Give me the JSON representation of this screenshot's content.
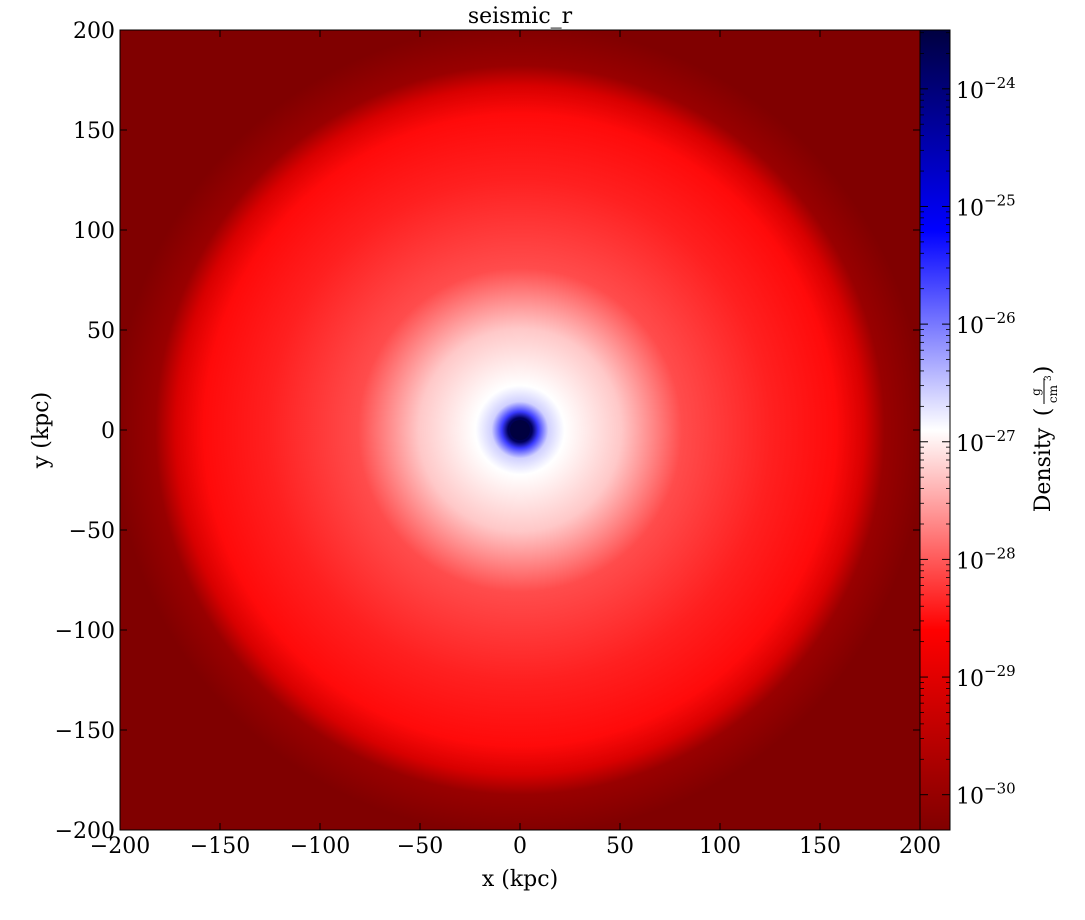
{
  "chart_data": {
    "type": "heatmap",
    "title": "seismic_r",
    "xlabel": "x  (kpc)",
    "ylabel": "y  (kpc)",
    "xlim": [
      -200,
      200
    ],
    "ylim": [
      -200,
      200
    ],
    "x_ticks": [
      -200,
      -150,
      -100,
      -50,
      0,
      50,
      100,
      150,
      200
    ],
    "y_ticks": [
      -200,
      -150,
      -100,
      -50,
      0,
      50,
      100,
      150,
      200
    ],
    "x_tick_labels": [
      "−200",
      "−150",
      "−100",
      "−50",
      "0",
      "50",
      "100",
      "150",
      "200"
    ],
    "y_tick_labels": [
      "−200",
      "−150",
      "−100",
      "−50",
      "0",
      "50",
      "100",
      "150",
      "200"
    ],
    "colormap": "seismic_r",
    "colorbar": {
      "label": "Density",
      "unit_numerator": "g",
      "unit_denominator": "cm",
      "unit_power": "3",
      "scale": "log",
      "range_log10": [
        -30.3,
        -23.5
      ],
      "ticks_log10": [
        -24,
        -25,
        -26,
        -27,
        -28,
        -29,
        -30
      ],
      "tick_base": "10",
      "tick_exponents": [
        "−24",
        "−25",
        "−26",
        "−27",
        "−28",
        "−29",
        "−30"
      ]
    },
    "field": {
      "description": "spherical gas density projection centered at origin",
      "center_kpc": [
        0,
        0
      ],
      "core_log10_density": -23.5,
      "outer_radius_kpc": 175,
      "background_log10_density": -30.3
    }
  }
}
